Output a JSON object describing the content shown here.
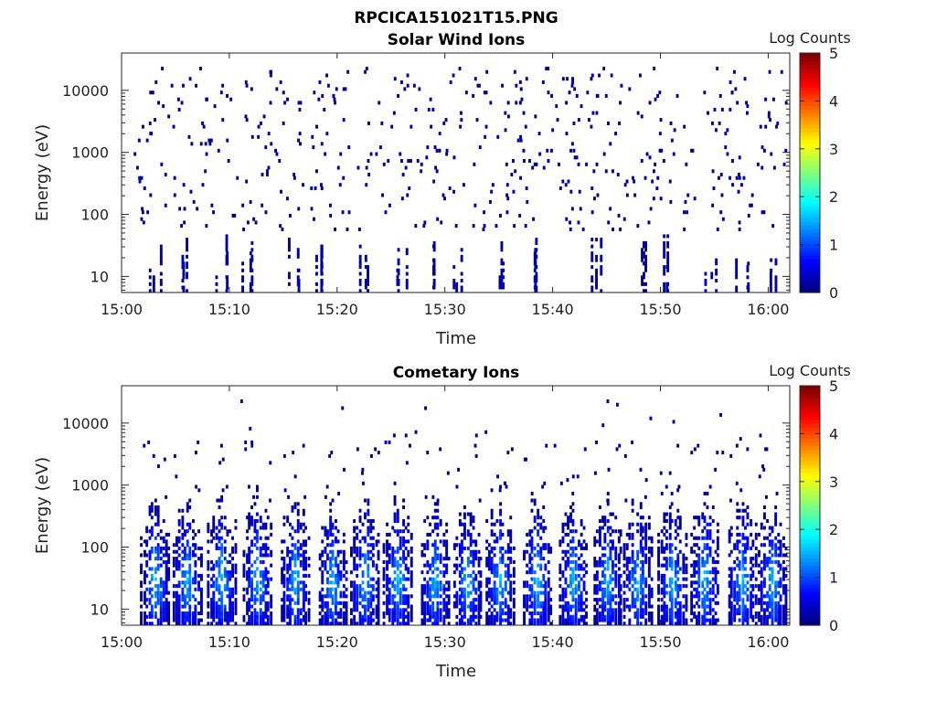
{
  "figure": {
    "filename": "RPCICA151021T15.PNG"
  },
  "chart_data": [
    {
      "type": "heatmap",
      "title": "Solar Wind Ions",
      "xlabel": "Time",
      "ylabel": "Energy (eV)",
      "x_range": [
        "15:00",
        "16:02"
      ],
      "xticks": [
        "15:00",
        "15:10",
        "15:20",
        "15:30",
        "15:40",
        "15:50",
        "16:00"
      ],
      "y_scale": "log",
      "ylim": [
        5.5,
        40000
      ],
      "yticks": [
        10,
        100,
        1000,
        10000
      ],
      "ytick_labels": [
        "10",
        "100",
        "1000",
        "10000"
      ],
      "colorbar": {
        "label": "Log Counts",
        "range": [
          0,
          5
        ],
        "ticks": [
          "0",
          "1",
          "2",
          "3",
          "4",
          "5"
        ],
        "colormap": "jet"
      },
      "pattern": "sparse dark-blue single counts over all energies, short vertical streaks below ~80 eV",
      "bursts_minutes": [
        3.0,
        5.8,
        9.2,
        11.5,
        16.0,
        18.0,
        22.5,
        26.0,
        28.5,
        31.2,
        34.8,
        38.5,
        44.0,
        48.0,
        50.5,
        54.5,
        57.5,
        60.5
      ],
      "max_log_counts": 0.5
    },
    {
      "type": "heatmap",
      "title": "Cometary Ions",
      "xlabel": "Time",
      "ylabel": "Energy (eV)",
      "x_range": [
        "15:00",
        "16:02"
      ],
      "xticks": [
        "15:00",
        "15:10",
        "15:20",
        "15:30",
        "15:40",
        "15:50",
        "16:00"
      ],
      "y_scale": "log",
      "ylim": [
        5.5,
        40000
      ],
      "yticks": [
        10,
        100,
        1000,
        10000
      ],
      "ytick_labels": [
        "10",
        "100",
        "1000",
        "10000"
      ],
      "colorbar": {
        "label": "Log Counts",
        "range": [
          0,
          5
        ],
        "ticks": [
          "0",
          "1",
          "2",
          "3",
          "4",
          "5"
        ],
        "colormap": "jet"
      },
      "pattern": "periodic vertical bursts from ~6 eV up to ~200-700 eV, brightest (log counts ~1.5) near 20-80 eV",
      "bursts_minutes": [
        3.0,
        6.0,
        9.2,
        12.5,
        16.0,
        19.5,
        22.5,
        25.5,
        29.0,
        32.0,
        35.0,
        38.5,
        41.8,
        45.0,
        47.8,
        51.0,
        54.0,
        57.5,
        60.3
      ],
      "max_log_counts": 1.6
    }
  ]
}
